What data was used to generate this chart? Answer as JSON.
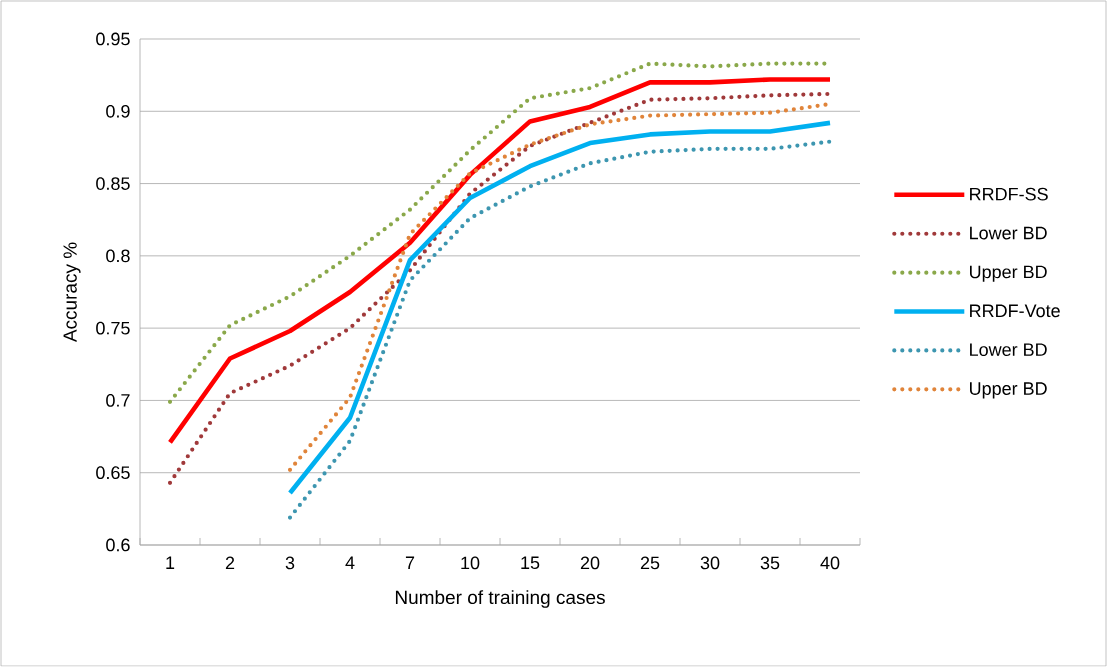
{
  "chart_data": {
    "type": "line",
    "xlabel": "Number of training cases",
    "ylabel": "Accuracy %",
    "categories": [
      "1",
      "2",
      "3",
      "4",
      "7",
      "10",
      "15",
      "20",
      "25",
      "30",
      "35",
      "40"
    ],
    "ylim": [
      0.6,
      0.95
    ],
    "yticks": [
      0.6,
      0.65,
      0.7,
      0.75,
      0.8,
      0.85,
      0.9,
      0.95
    ],
    "grid": "y",
    "legend": "right",
    "marker": "none",
    "series": [
      {
        "name": "RRDF-SS",
        "color": "#ff0000",
        "line_style": "solid",
        "values": [
          0.671,
          0.729,
          0.748,
          0.775,
          0.809,
          0.856,
          0.893,
          0.903,
          0.92,
          0.92,
          0.922,
          0.922
        ]
      },
      {
        "name": "Lower BD",
        "color": "#a0393a",
        "line_style": "dotted",
        "values": [
          0.643,
          0.705,
          0.724,
          0.75,
          0.79,
          0.843,
          0.876,
          0.892,
          0.908,
          0.909,
          0.911,
          0.912
        ]
      },
      {
        "name": "Upper BD",
        "color": "#8aa84a",
        "line_style": "dotted",
        "values": [
          0.699,
          0.752,
          0.772,
          0.8,
          0.832,
          0.873,
          0.909,
          0.916,
          0.933,
          0.931,
          0.933,
          0.933
        ]
      },
      {
        "name": "RRDF-Vote",
        "color": "#00b0f0",
        "line_style": "solid",
        "values": [
          null,
          null,
          0.636,
          0.688,
          0.797,
          0.84,
          0.862,
          0.878,
          0.884,
          0.886,
          0.886,
          0.892
        ]
      },
      {
        "name": "Lower BD",
        "color": "#3d96b0",
        "line_style": "dotted",
        "values": [
          null,
          null,
          0.619,
          0.672,
          0.783,
          0.826,
          0.848,
          0.864,
          0.872,
          0.874,
          0.874,
          0.879
        ]
      },
      {
        "name": "Upper BD",
        "color": "#e0843a",
        "line_style": "dotted",
        "values": [
          null,
          null,
          0.652,
          0.702,
          0.815,
          0.857,
          0.877,
          0.891,
          0.897,
          0.898,
          0.899,
          0.905
        ]
      }
    ]
  }
}
